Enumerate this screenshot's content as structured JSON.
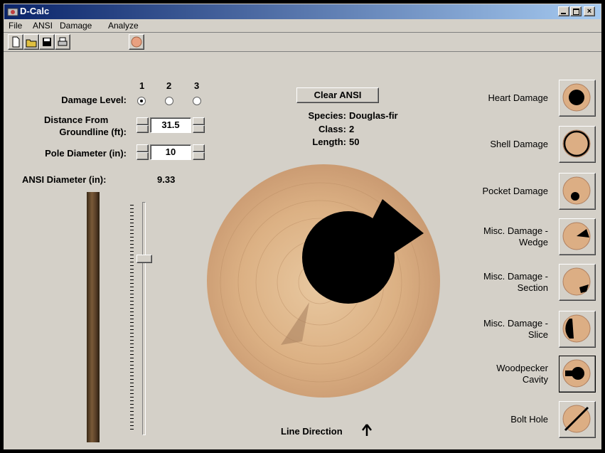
{
  "window": {
    "title": "D-Calc"
  },
  "menu": [
    "File",
    "ANSI",
    "Damage",
    "Analyze"
  ],
  "form": {
    "damage_level": {
      "label": "Damage Level:",
      "options": [
        "1",
        "2",
        "3"
      ]
    },
    "distance": {
      "label_lines": [
        "Distance From",
        "Groundline (ft):"
      ],
      "value": "31.5"
    },
    "pole_diameter": {
      "label": "Pole Diameter (in):",
      "value": "10"
    },
    "ansi_diameter": {
      "label": "ANSI Diameter (in):",
      "value": "9.33"
    }
  },
  "clear_button": "Clear ANSI",
  "info": [
    {
      "label": "Species:",
      "value": "Douglas-fir"
    },
    {
      "label": "Class:",
      "value": "2"
    },
    {
      "label": "Length:",
      "value": "50"
    }
  ],
  "line_direction": "Line Direction",
  "damage_types": [
    {
      "label_lines": [
        "Heart Damage"
      ]
    },
    {
      "label_lines": [
        "Shell Damage"
      ]
    },
    {
      "label_lines": [
        "Pocket Damage"
      ]
    },
    {
      "label_lines": [
        "Misc. Damage -",
        "Wedge"
      ]
    },
    {
      "label_lines": [
        "Misc. Damage -",
        "Section"
      ]
    },
    {
      "label_lines": [
        "Misc. Damage -",
        "Slice"
      ]
    },
    {
      "label_lines": [
        "Woodpecker",
        "Cavity"
      ]
    },
    {
      "label_lines": [
        "Bolt Hole"
      ]
    }
  ]
}
